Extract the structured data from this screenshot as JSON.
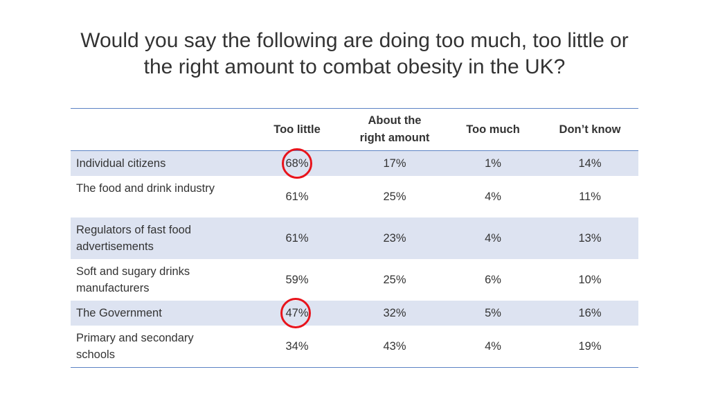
{
  "title": {
    "line1": "Would you say the following are doing too much, too little or",
    "line2": "the right amount to combat obesity in the UK?"
  },
  "colors": {
    "band": "#dde3f1",
    "rule": "#5b82c4",
    "highlight_circle": "#e8131b"
  },
  "chart_data": {
    "type": "table",
    "title": "Would you say the following are doing too much, too little or the right amount to combat obesity in the UK?",
    "columns": [
      "",
      "Too little",
      "About the right amount",
      "Too much",
      "Don’t know"
    ],
    "header": {
      "too_little": "Too little",
      "about_right_1": "About the",
      "about_right_2": "right amount",
      "too_much": "Too much",
      "dont_know": "Don’t know"
    },
    "rows": [
      {
        "label": "Individual citizens",
        "values": [
          "68%",
          "17%",
          "1%",
          "14%"
        ],
        "highlighted": "Too little"
      },
      {
        "label": "The food and drink industry",
        "values": [
          "61%",
          "25%",
          "4%",
          "11%"
        ]
      },
      {
        "label": "Regulators of fast food advertisements",
        "values": [
          "61%",
          "23%",
          "4%",
          "13%"
        ]
      },
      {
        "label": "Soft and sugary drinks manufacturers",
        "values": [
          "59%",
          "25%",
          "6%",
          "10%"
        ]
      },
      {
        "label": "The Government",
        "values": [
          "47%",
          "32%",
          "5%",
          "16%"
        ],
        "highlighted": "Too little"
      },
      {
        "label": "Primary and secondary schools",
        "values": [
          "34%",
          "43%",
          "4%",
          "19%"
        ]
      }
    ]
  }
}
